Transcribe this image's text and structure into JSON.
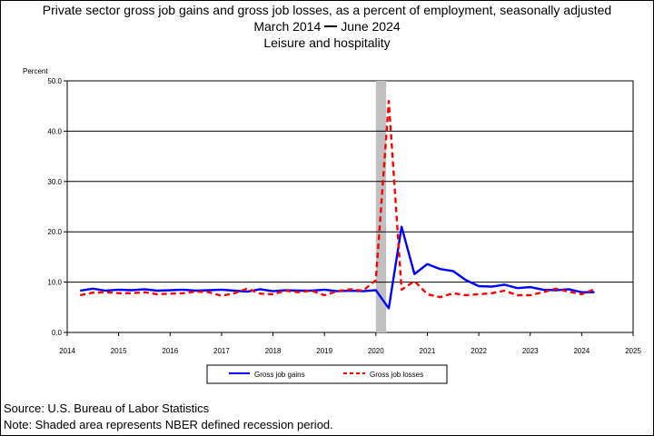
{
  "chart_data": {
    "type": "line",
    "title": "Private sector gross job gains and gross job losses, as a percent of employment, seasonally adjusted",
    "subtitle_start": "March 2014",
    "subtitle_end": "June 2024",
    "subtitle_industry": "Leisure and hospitality",
    "ylabel": "Percent",
    "xlabel": "",
    "ylim": [
      0,
      50
    ],
    "y_ticks": [
      "0.0",
      "10.0",
      "20.0",
      "30.0",
      "40.0",
      "50.0"
    ],
    "xlim": [
      2014,
      2025
    ],
    "x_ticks": [
      "2014",
      "2015",
      "2016",
      "2017",
      "2018",
      "2019",
      "2020",
      "2021",
      "2022",
      "2023",
      "2024",
      "2025"
    ],
    "grid": "horizontal",
    "recession_shading": {
      "from": 2020.0,
      "to": 2020.2,
      "color": "#c0c0c0"
    },
    "legend_position": "bottom-center",
    "series": [
      {
        "name": "Gross job gains",
        "color": "#0000ff",
        "style": "solid",
        "x": [
          2014.25,
          2014.5,
          2014.75,
          2015.0,
          2015.25,
          2015.5,
          2015.75,
          2016.0,
          2016.25,
          2016.5,
          2016.75,
          2017.0,
          2017.25,
          2017.5,
          2017.75,
          2018.0,
          2018.25,
          2018.5,
          2018.75,
          2019.0,
          2019.25,
          2019.5,
          2019.75,
          2020.0,
          2020.25,
          2020.5,
          2020.75,
          2021.0,
          2021.25,
          2021.5,
          2021.75,
          2022.0,
          2022.25,
          2022.5,
          2022.75,
          2023.0,
          2023.25,
          2023.5,
          2023.75,
          2024.0,
          2024.25
        ],
        "values": [
          8.3,
          8.7,
          8.3,
          8.5,
          8.4,
          8.6,
          8.3,
          8.4,
          8.5,
          8.3,
          8.4,
          8.5,
          8.3,
          8.1,
          8.6,
          8.2,
          8.4,
          8.3,
          8.3,
          8.5,
          8.2,
          8.3,
          8.2,
          8.4,
          4.8,
          21.0,
          11.6,
          13.6,
          12.6,
          12.2,
          10.4,
          9.2,
          9.1,
          9.5,
          8.8,
          9.0,
          8.5,
          8.4,
          8.6,
          8.0,
          8.0
        ]
      },
      {
        "name": "Gross job losses",
        "color": "#ff0000",
        "style": "dashed",
        "x": [
          2014.25,
          2014.5,
          2014.75,
          2015.0,
          2015.25,
          2015.5,
          2015.75,
          2016.0,
          2016.25,
          2016.5,
          2016.75,
          2017.0,
          2017.25,
          2017.5,
          2017.75,
          2018.0,
          2018.25,
          2018.5,
          2018.75,
          2019.0,
          2019.25,
          2019.5,
          2019.75,
          2020.0,
          2020.25,
          2020.5,
          2020.75,
          2021.0,
          2021.25,
          2021.5,
          2021.75,
          2022.0,
          2022.25,
          2022.5,
          2022.75,
          2023.0,
          2023.25,
          2023.5,
          2023.75,
          2024.0,
          2024.25
        ],
        "values": [
          7.4,
          7.9,
          8.0,
          7.8,
          7.8,
          8.0,
          7.6,
          7.7,
          7.8,
          8.1,
          8.0,
          7.3,
          7.8,
          8.7,
          7.7,
          7.6,
          8.3,
          8.0,
          8.3,
          7.4,
          8.2,
          8.6,
          8.3,
          10.4,
          46.0,
          8.5,
          10.2,
          7.6,
          7.0,
          7.8,
          7.4,
          7.6,
          7.8,
          8.3,
          7.4,
          7.4,
          8.0,
          8.7,
          8.1,
          7.6,
          8.6
        ]
      }
    ]
  },
  "footer": {
    "source": "Source: U.S. Bureau of Labor Statistics",
    "note": "Note: Shaded area represents NBER defined recession period."
  }
}
